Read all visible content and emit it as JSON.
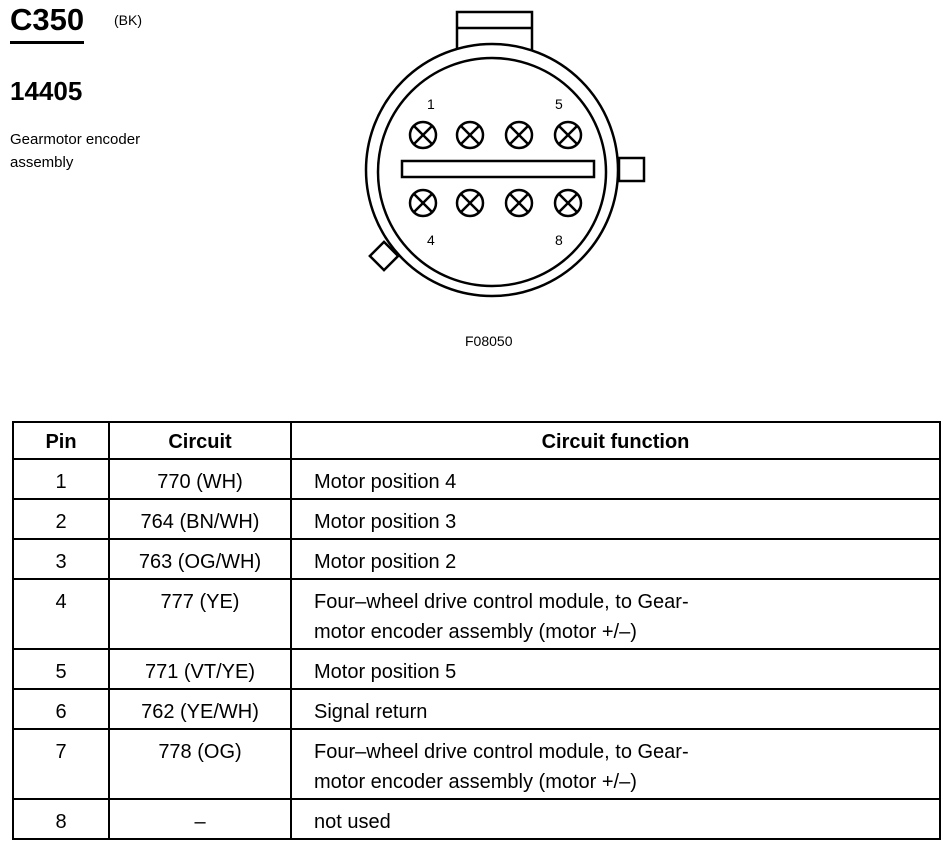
{
  "connector": {
    "id": "C350",
    "color": "(BK)",
    "part_number": "14405",
    "description": "Gearmotor encoder assembly",
    "figure_id": "F08050",
    "pin_labels": [
      "1",
      "5",
      "4",
      "8"
    ]
  },
  "table": {
    "headers": [
      "Pin",
      "Circuit",
      "Circuit function"
    ],
    "rows": [
      {
        "pin": "1",
        "circuit": "770 (WH)",
        "function": "Motor position 4"
      },
      {
        "pin": "2",
        "circuit": "764 (BN/WH)",
        "function": "Motor position 3"
      },
      {
        "pin": "3",
        "circuit": "763 (OG/WH)",
        "function": "Motor position 2"
      },
      {
        "pin": "4",
        "circuit": "777 (YE)",
        "function": "Four–wheel drive control module, to Gear-\nmotor encoder assembly (motor +/–)"
      },
      {
        "pin": "5",
        "circuit": "771 (VT/YE)",
        "function": "Motor position 5"
      },
      {
        "pin": "6",
        "circuit": "762 (YE/WH)",
        "function": "Signal return"
      },
      {
        "pin": "7",
        "circuit": "778 (OG)",
        "function": "Four–wheel drive control module, to Gear-\nmotor encoder assembly (motor +/–)"
      },
      {
        "pin": "8",
        "circuit": "–",
        "function": "not used"
      }
    ]
  }
}
